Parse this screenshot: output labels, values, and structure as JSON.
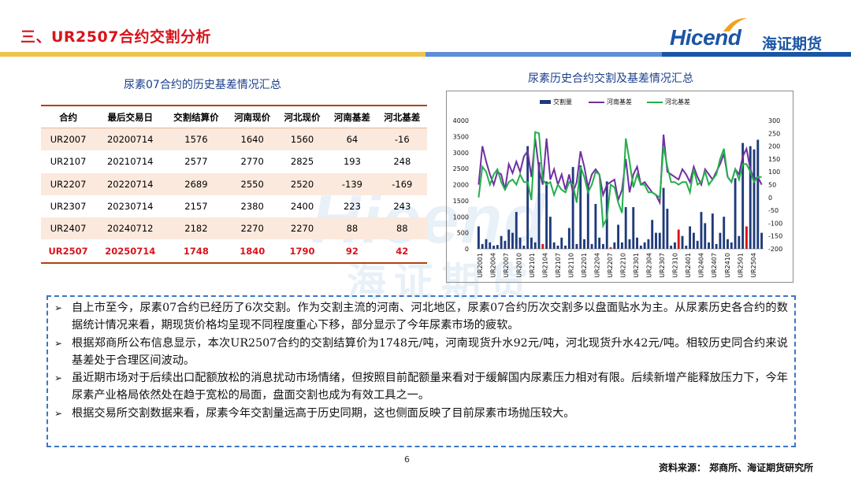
{
  "header": {
    "title": "三、UR2507合约交割分析",
    "logo_word": "Hicend",
    "logo_cn": "海证期货",
    "band_colors": [
      "#f1c24d",
      "#5d8fd6",
      "#1b55a5"
    ]
  },
  "table": {
    "title": "尿素07合约的历史基差情况汇总",
    "columns": [
      "合约",
      "最后交易日",
      "交割结算价",
      "河南现价",
      "河北现价",
      "河南基差",
      "河北基差"
    ],
    "rows": [
      [
        "UR2007",
        "20200714",
        "1576",
        "1640",
        "1560",
        "64",
        "-16"
      ],
      [
        "UR2107",
        "20210714",
        "2577",
        "2770",
        "2825",
        "193",
        "248"
      ],
      [
        "UR2207",
        "20220714",
        "2689",
        "2550",
        "2520",
        "-139",
        "-169"
      ],
      [
        "UR2307",
        "20230714",
        "2157",
        "2380",
        "2400",
        "223",
        "243"
      ],
      [
        "UR2407",
        "20240712",
        "2182",
        "2270",
        "2270",
        "88",
        "88"
      ],
      [
        "UR2507",
        "20250714",
        "1748",
        "1840",
        "1790",
        "92",
        "42"
      ]
    ]
  },
  "chart_data": {
    "type": "bar",
    "title": "尿素历史合约交割及基差情况汇总",
    "x_labels": [
      "UR2001",
      "UR2004",
      "UR2007",
      "UR2010",
      "UR2101",
      "UR2104",
      "UR2107",
      "UR2110",
      "UR2201",
      "UR2204",
      "UR2207",
      "UR2210",
      "UR2301",
      "UR2304",
      "UR2307",
      "UR2310",
      "UR2401",
      "UR2404",
      "UR2407",
      "UR2410",
      "UR2501",
      "UR2504"
    ],
    "y_left": {
      "min": 0,
      "max": 4000,
      "ticks": [
        0,
        500,
        1000,
        1500,
        2000,
        2500,
        3000,
        3500,
        4000
      ]
    },
    "y_right": {
      "min": -200,
      "max": 300,
      "ticks": [
        -200,
        -150,
        -100,
        -50,
        0,
        50,
        100,
        150,
        200,
        250,
        300
      ]
    },
    "legend": [
      "交割量",
      "河南基差",
      "河北基差"
    ],
    "legend_position": "top",
    "colors": {
      "bars": "#1f3a7a",
      "bars_highlight": "#d8141c",
      "henan": "#7030a0",
      "hebei": "#22b04b"
    },
    "bar_red_indices": [
      17,
      35,
      53,
      71
    ],
    "volume": [
      700,
      150,
      300,
      200,
      100,
      120,
      400,
      250,
      600,
      500,
      1150,
      350,
      100,
      3200,
      350,
      200,
      2700,
      150,
      2100,
      1000,
      200,
      100,
      350,
      100,
      650,
      2550,
      150,
      2600,
      300,
      2000,
      150,
      1400,
      350,
      150,
      2100,
      50,
      200,
      750,
      200,
      1300,
      300,
      1300,
      350,
      100,
      200,
      300,
      900,
      500,
      500,
      1900,
      1250,
      100,
      200,
      600,
      400,
      100,
      700,
      500,
      250,
      1150,
      800,
      200,
      1100,
      150,
      500,
      1000,
      300,
      200,
      2200,
      400,
      3300,
      700,
      3200,
      3100,
      3400,
      500
    ],
    "henan_basis": [
      50,
      200,
      140,
      90,
      50,
      100,
      90,
      30,
      130,
      95,
      140,
      100,
      160,
      180,
      80,
      230,
      110,
      50,
      230,
      70,
      110,
      50,
      90,
      30,
      90,
      20,
      60,
      180,
      120,
      40,
      90,
      110,
      90,
      10,
      50,
      60,
      70,
      -10,
      30,
      150,
      20,
      90,
      120,
      50,
      60,
      40,
      20,
      10,
      -20,
      245,
      100,
      90,
      80,
      70,
      110,
      90,
      60,
      120,
      80,
      50,
      110,
      90,
      70,
      100,
      130,
      170,
      80,
      60,
      110,
      90,
      160,
      190,
      110,
      70,
      80,
      50
    ],
    "hebei_basis": [
      0,
      120,
      100,
      50,
      90,
      110,
      60,
      30,
      60,
      70,
      50,
      90,
      60,
      60,
      -10,
      255,
      250,
      70,
      50,
      60,
      10,
      50,
      30,
      20,
      60,
      50,
      -20,
      120,
      80,
      20,
      50,
      100,
      90,
      -110,
      -80,
      50,
      40,
      -20,
      -60,
      230,
      140,
      40,
      90,
      50,
      50,
      20,
      20,
      10,
      0,
      200,
      120,
      60,
      60,
      50,
      60,
      60,
      20,
      110,
      50,
      60,
      100,
      50,
      70,
      90,
      150,
      190,
      80,
      60,
      110,
      70,
      130,
      130,
      100,
      60,
      80,
      80
    ]
  },
  "bullets": [
    "自上市至今，尿素07合约已经历了6次交割。作为交割主流的河南、河北地区，尿素07合约历次交割多以盘面贴水为主。从尿素历史各合约的数据统计情况来看，期现货价格均呈现不同程度重心下移，部分显示了今年尿素市场的疲软。",
    "根据郑商所公布信息显示，本次UR2507合约的交割结算价为1748元/吨，河南现货升水92元/吨，河北现货升水42元/吨。相较历史同合约来说基差处于合理区间波动。",
    "虽近期市场对于后续出口配额放松的消息扰动市场情绪，但按照目前配额量来看对于缓解国内尿素压力相对有限。后续新增产能释放压力下，今年尿素产业格局依然处在趋于宽松的局面，盘面交割也成为有效工具之一。",
    "根据交易所交割数据来看，尿素今年交割量远高于历史同期，这也侧面反映了目前尿素市场抛压较大。"
  ],
  "footer": {
    "page_number": "6",
    "source": "资料来源：   郑商所、海证期货研究所"
  }
}
